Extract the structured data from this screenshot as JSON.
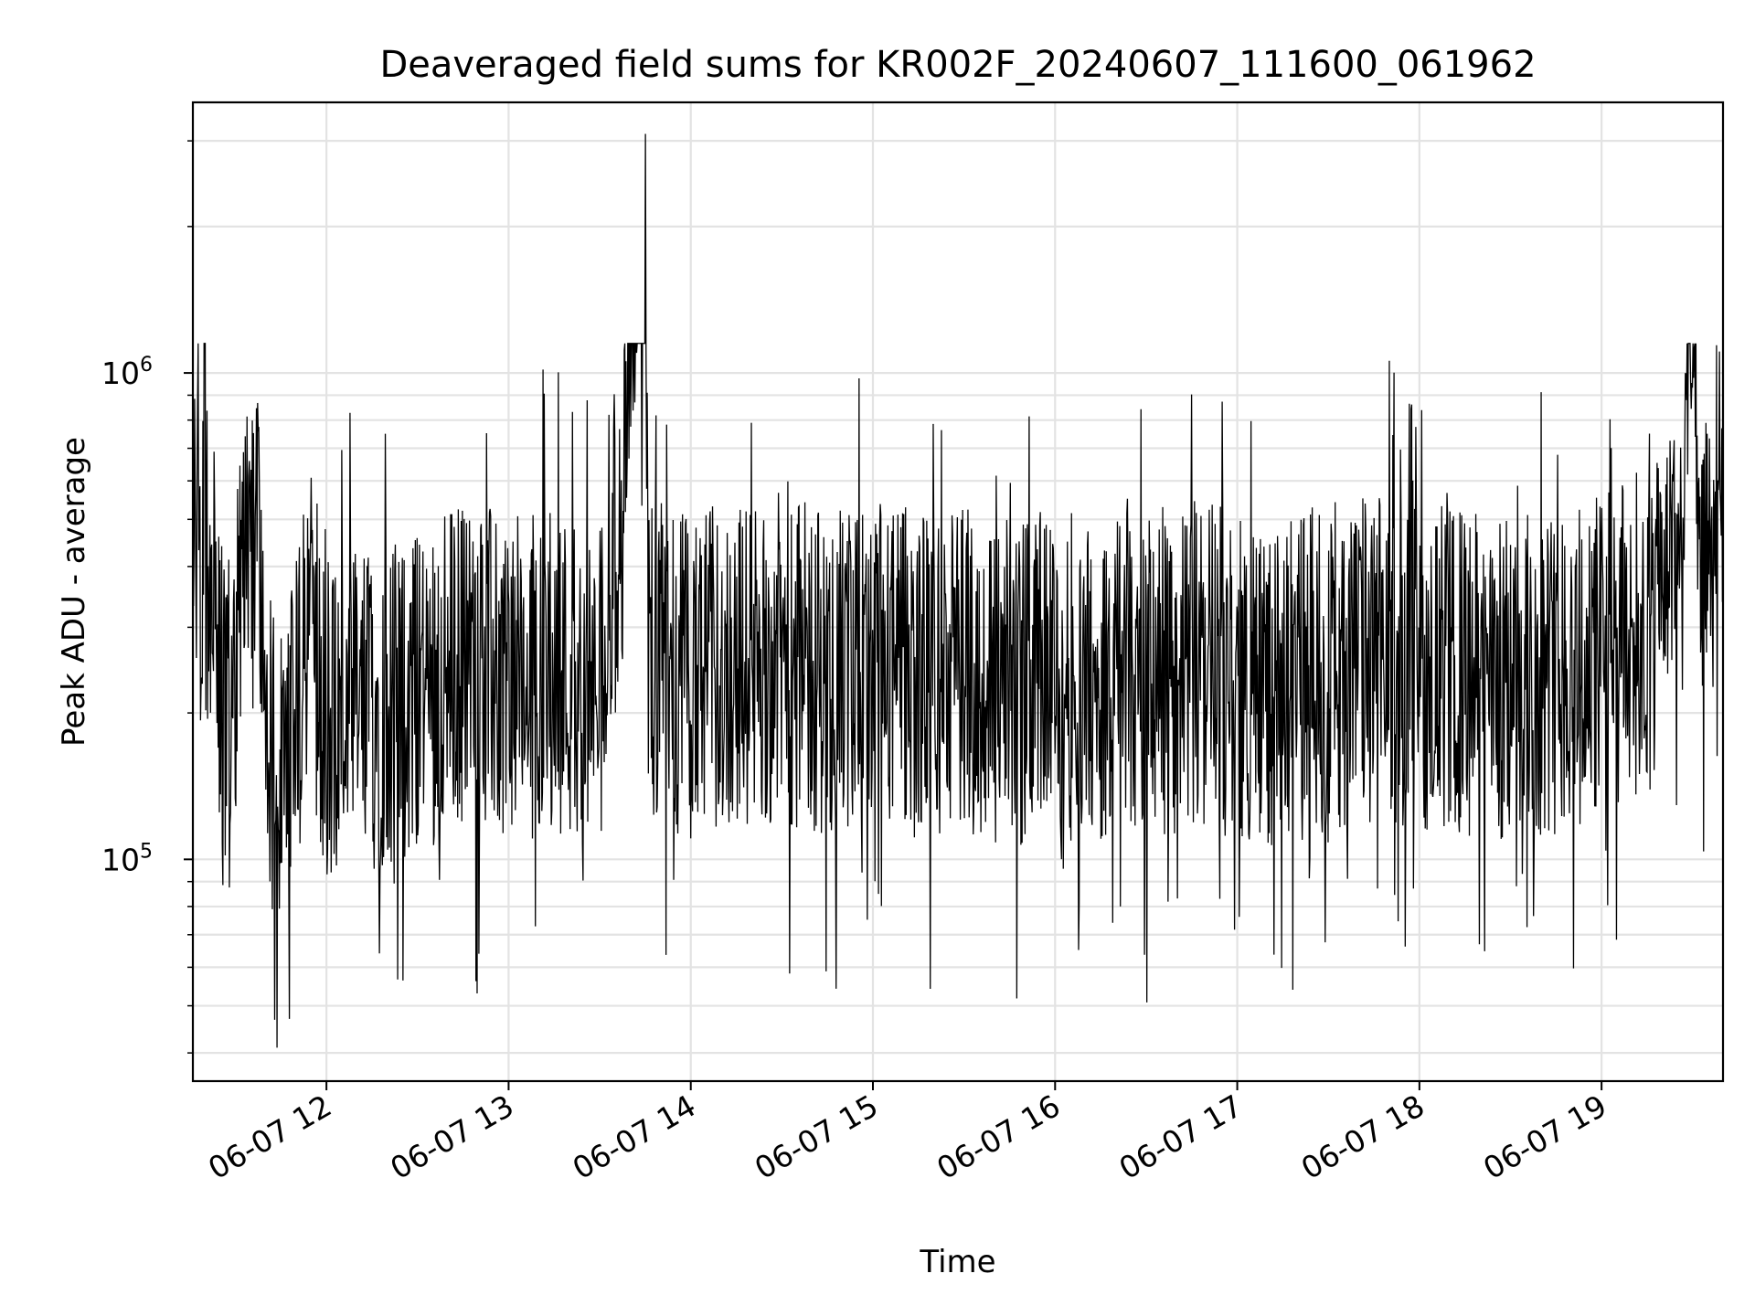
{
  "chart_data": {
    "type": "line",
    "title": "Deaveraged field sums for KR002F_20240607_111600_061962",
    "xlabel": "Time",
    "ylabel": "Peak ADU - average",
    "y_scale": "log",
    "ylim": [
      35000,
      3600000
    ],
    "xlim": [
      "2024-06-07 11:16",
      "2024-06-07 19:40"
    ],
    "grid": true,
    "legend": "none",
    "line_color": "#000000",
    "x_tick_labels": [
      "06-07 12",
      "06-07 13",
      "06-07 14",
      "06-07 15",
      "06-07 16",
      "06-07 17",
      "06-07 18",
      "06-07 19"
    ],
    "x_ticks": [
      "2024-06-07 12:00",
      "2024-06-07 13:00",
      "2024-06-07 14:00",
      "2024-06-07 15:00",
      "2024-06-07 16:00",
      "2024-06-07 17:00",
      "2024-06-07 18:00",
      "2024-06-07 19:00"
    ],
    "y_tick_labels": [
      {
        "value": 100000,
        "base": "10",
        "exp": "5"
      },
      {
        "value": 1000000,
        "base": "10",
        "exp": "6"
      }
    ],
    "series": [
      {
        "points": [
          [
            "2024-06-07 11:16",
            300000
          ],
          [
            "2024-06-07 11:18",
            700000
          ],
          [
            "2024-06-07 11:20",
            950000
          ],
          [
            "2024-06-07 11:22",
            600000
          ],
          [
            "2024-06-07 11:25",
            200000
          ],
          [
            "2024-06-07 11:30",
            250000
          ],
          [
            "2024-06-07 11:36",
            600000
          ],
          [
            "2024-06-07 11:40",
            190000
          ],
          [
            "2024-06-07 11:45",
            130000
          ],
          [
            "2024-06-07 11:50",
            200000
          ],
          [
            "2024-06-07 11:55",
            300000
          ],
          [
            "2024-06-07 12:00",
            200000
          ],
          [
            "2024-06-07 12:15",
            200000
          ],
          [
            "2024-06-07 12:30",
            220000
          ],
          [
            "2024-06-07 12:45",
            260000
          ],
          [
            "2024-06-07 13:00",
            230000
          ],
          [
            "2024-06-07 13:15",
            250000
          ],
          [
            "2024-06-07 13:30",
            220000
          ],
          [
            "2024-06-07 13:45",
            3100000
          ],
          [
            "2024-06-07 13:46",
            250000
          ],
          [
            "2024-06-07 14:00",
            240000
          ],
          [
            "2024-06-07 14:15",
            250000
          ],
          [
            "2024-06-07 14:30",
            260000
          ],
          [
            "2024-06-07 14:45",
            240000
          ],
          [
            "2024-06-07 15:00",
            250000
          ],
          [
            "2024-06-07 15:15",
            240000
          ],
          [
            "2024-06-07 15:30",
            250000
          ],
          [
            "2024-06-07 15:45",
            230000
          ],
          [
            "2024-06-07 16:00",
            240000
          ],
          [
            "2024-06-07 16:15",
            230000
          ],
          [
            "2024-06-07 16:30",
            240000
          ],
          [
            "2024-06-07 16:45",
            250000
          ],
          [
            "2024-06-07 17:00",
            240000
          ],
          [
            "2024-06-07 17:15",
            230000
          ],
          [
            "2024-06-07 17:30",
            250000
          ],
          [
            "2024-06-07 17:45",
            260000
          ],
          [
            "2024-06-07 18:00",
            250000
          ],
          [
            "2024-06-07 18:15",
            240000
          ],
          [
            "2024-06-07 18:30",
            230000
          ],
          [
            "2024-06-07 18:45",
            250000
          ],
          [
            "2024-06-07 19:00",
            260000
          ],
          [
            "2024-06-07 19:15",
            300000
          ],
          [
            "2024-06-07 19:25",
            450000
          ],
          [
            "2024-06-07 19:28",
            1150000
          ],
          [
            "2024-06-07 19:40",
            450000
          ]
        ]
      }
    ]
  }
}
